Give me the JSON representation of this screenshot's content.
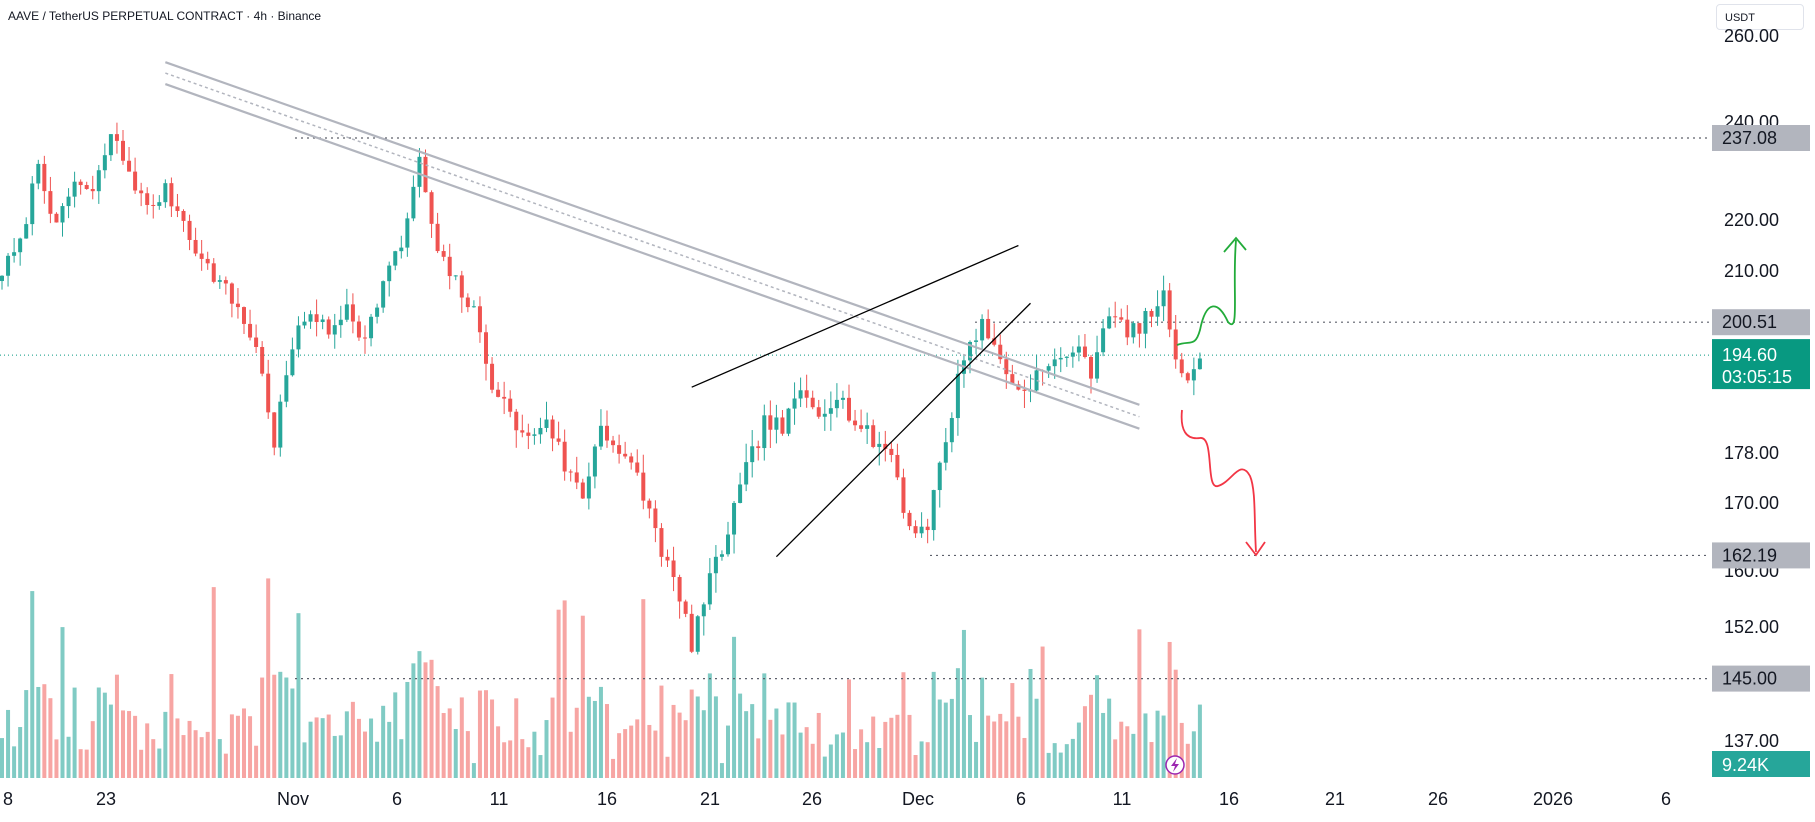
{
  "header": {
    "symbol": "AAVE / TetherUS PERPETUAL CONTRACT",
    "separator1": " · ",
    "interval": "4h",
    "separator2": " · ",
    "exchange": "Binance"
  },
  "currency_selector": {
    "label": "USDT"
  },
  "icons": {
    "lightning": "lightning-icon"
  },
  "colors": {
    "up": "#26a69a",
    "down": "#ef5350",
    "up_volume": "#80cbc4",
    "down_volume": "#f7a5a3",
    "level_line": "#5d606b",
    "level_box": "#b2b5be",
    "current_price": "#089981",
    "trendline": "#b2b5be",
    "wedge": "#000000",
    "bull_arrow": "#22ab3a",
    "bear_arrow": "#f23645",
    "lightning": "#9c27b0"
  },
  "chart_data": {
    "type": "candlestick",
    "interval": "4h",
    "x_ticks": [
      "8",
      "23",
      "Nov",
      "6",
      "11",
      "16",
      "21",
      "26",
      "Dec",
      "6",
      "11",
      "16",
      "21",
      "26",
      "2026",
      "6"
    ],
    "y_ticks": [
      "260.00",
      "240.00",
      "220.00",
      "210.00",
      "178.00",
      "170.00",
      "160.00",
      "152.00",
      "137.00"
    ],
    "y_tick_values": [
      260,
      240,
      220,
      210,
      178,
      170,
      160,
      152,
      137
    ],
    "price_scale": "log",
    "grid": false,
    "levels": [
      {
        "value": 237.08,
        "label": "237.08"
      },
      {
        "value": 200.51,
        "label": "200.51"
      },
      {
        "value": 162.19,
        "label": "162.19"
      },
      {
        "value": 145.0,
        "label": "145.00"
      }
    ],
    "current_price": {
      "value": 194.6,
      "label": "194.60",
      "countdown": "03:05:15"
    },
    "volume_label": "9.24K",
    "price_path": [
      [
        0,
        210
      ],
      [
        3,
        215
      ],
      [
        6,
        232
      ],
      [
        9,
        218
      ],
      [
        12,
        228
      ],
      [
        15,
        225
      ],
      [
        18,
        238
      ],
      [
        21,
        230
      ],
      [
        24,
        222
      ],
      [
        27,
        226
      ],
      [
        30,
        220
      ],
      [
        33,
        212
      ],
      [
        36,
        208
      ],
      [
        39,
        203
      ],
      [
        42,
        196
      ],
      [
        45,
        180
      ],
      [
        48,
        196
      ],
      [
        51,
        203
      ],
      [
        54,
        198
      ],
      [
        57,
        204
      ],
      [
        60,
        197
      ],
      [
        63,
        208
      ],
      [
        66,
        215
      ],
      [
        69,
        232
      ],
      [
        72,
        213
      ],
      [
        75,
        208
      ],
      [
        78,
        202
      ],
      [
        81,
        190
      ],
      [
        84,
        184
      ],
      [
        87,
        180
      ],
      [
        90,
        184
      ],
      [
        93,
        176
      ],
      [
        96,
        171
      ],
      [
        99,
        183
      ],
      [
        102,
        178
      ],
      [
        105,
        174
      ],
      [
        108,
        166
      ],
      [
        111,
        158
      ],
      [
        114,
        150
      ],
      [
        117,
        158
      ],
      [
        120,
        166
      ],
      [
        123,
        175
      ],
      [
        126,
        183
      ],
      [
        129,
        182
      ],
      [
        132,
        188
      ],
      [
        135,
        185
      ],
      [
        138,
        188
      ],
      [
        141,
        183
      ],
      [
        144,
        180
      ],
      [
        147,
        178
      ],
      [
        150,
        166
      ],
      [
        153,
        167
      ],
      [
        156,
        180
      ],
      [
        159,
        195
      ],
      [
        162,
        200
      ],
      [
        165,
        194
      ],
      [
        168,
        188
      ],
      [
        171,
        191
      ],
      [
        174,
        193
      ],
      [
        177,
        196
      ],
      [
        180,
        192
      ],
      [
        183,
        203
      ],
      [
        186,
        198
      ],
      [
        189,
        201
      ],
      [
        192,
        205
      ],
      [
        195,
        190
      ],
      [
        198,
        194
      ]
    ],
    "annotations": {
      "descending_channel": {
        "upper": [
          [
            27,
            254
          ],
          [
            188,
            186
          ]
        ],
        "lower": [
          [
            27,
            249
          ],
          [
            188,
            182
          ]
        ]
      },
      "rising_wedge": {
        "upper": [
          [
            114,
            189
          ],
          [
            168,
            215
          ]
        ],
        "lower": [
          [
            128,
            162
          ],
          [
            170,
            204
          ]
        ]
      }
    }
  }
}
